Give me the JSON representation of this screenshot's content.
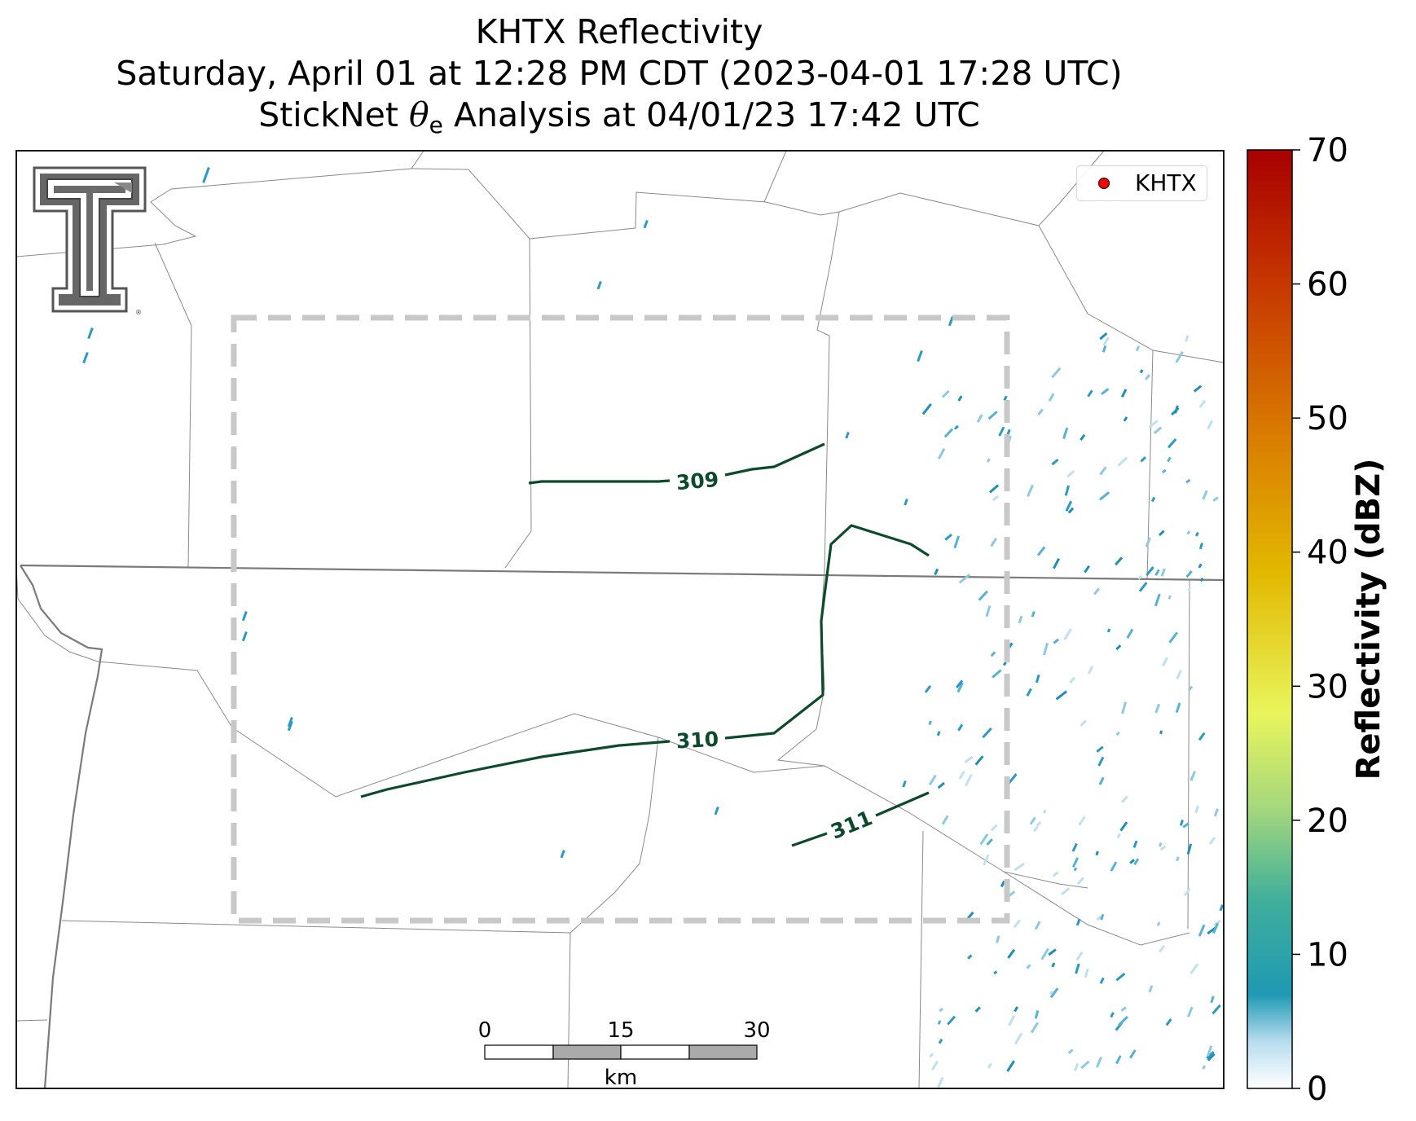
{
  "title": {
    "line1": "KHTX Reflectivity",
    "line2": "Saturday, April 01 at 12:28 PM CDT (2023-04-01 17:28 UTC)",
    "line3_prefix": "StickNet ",
    "line3_symbol": "θ",
    "line3_sub": "e",
    "line3_suffix": " Analysis at 04/01/23 17:42 UTC"
  },
  "legend": {
    "label": "KHTX",
    "marker_color": "#ff0000"
  },
  "contours": {
    "color": "#0b4a2a",
    "labels": [
      "309",
      "310",
      "311"
    ]
  },
  "scalebar": {
    "ticks": [
      "0",
      "15",
      "30"
    ],
    "unit": "km"
  },
  "colorbar": {
    "label": "Reflectivity (dBZ)",
    "ticks": [
      "0",
      "10",
      "20",
      "30",
      "40",
      "50",
      "60",
      "70"
    ],
    "min": 0,
    "max": 70
  },
  "logo": {
    "name": "texas-tech-double-t-logo",
    "text": "®"
  },
  "colors": {
    "analysis_box": "#c8c8c8",
    "county_lines": "#8a8a8a",
    "state_lines": "#7a7a7a",
    "reflectivity_low": "#2a9ac4"
  }
}
